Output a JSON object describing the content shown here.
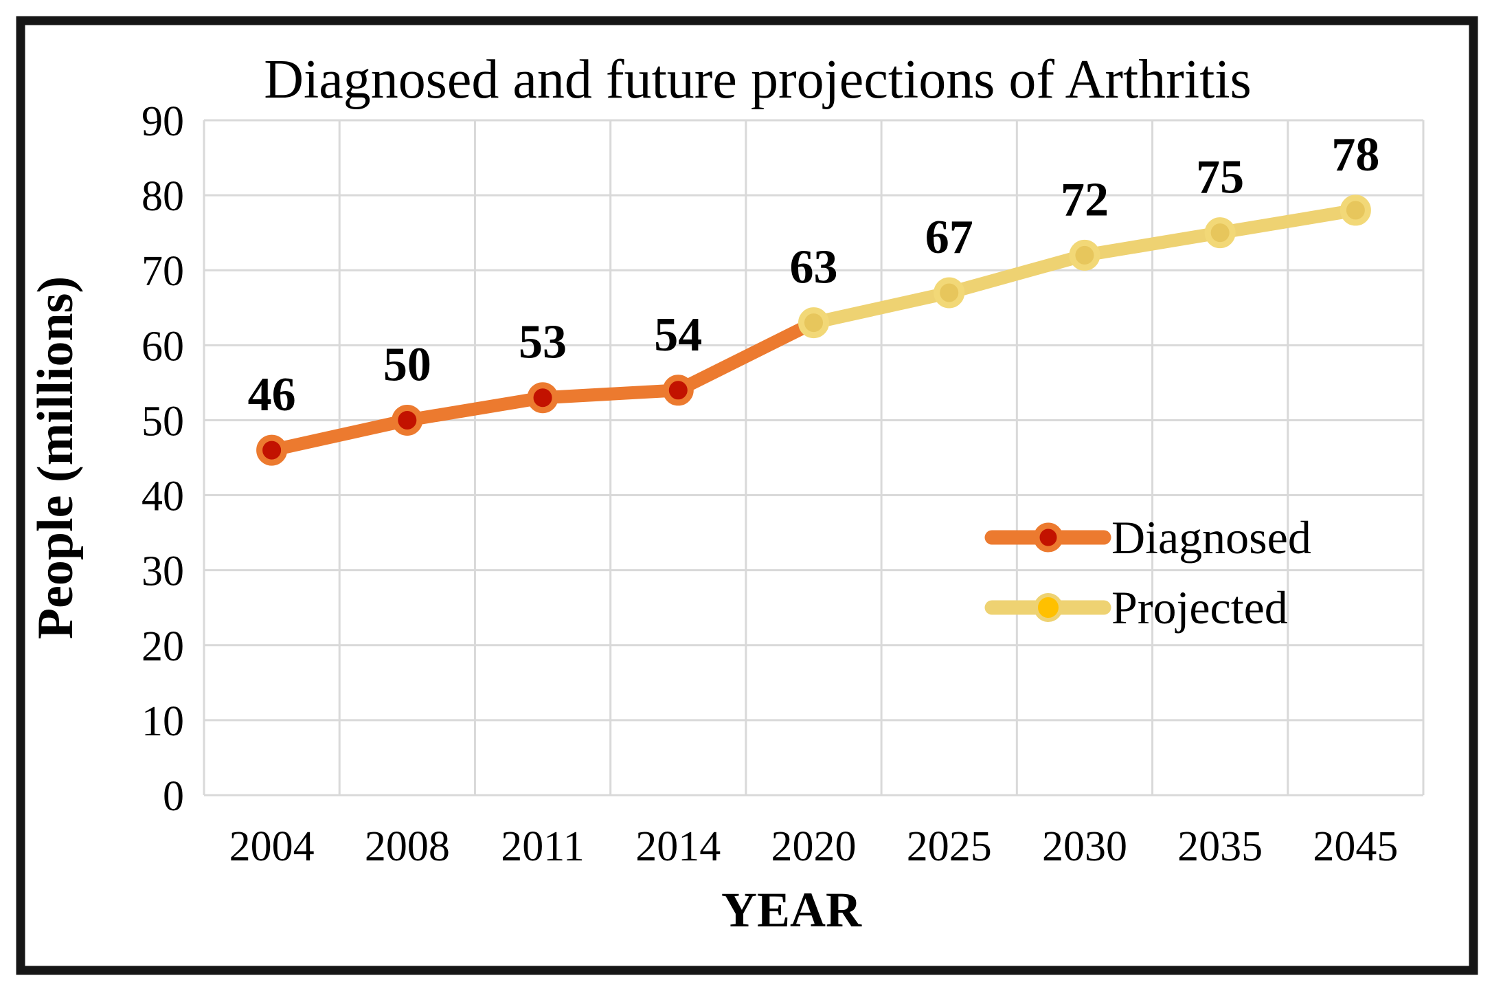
{
  "chart_data": {
    "type": "line",
    "title": "Diagnosed and future projections of Arthritis",
    "xlabel": "YEAR",
    "ylabel": "People  (millions)",
    "categories": [
      "2004",
      "2008",
      "2011",
      "2014",
      "2020",
      "2025",
      "2030",
      "2035",
      "2045"
    ],
    "ylim": [
      0,
      90
    ],
    "ytick_step": 10,
    "ytick_labels": [
      "0",
      "10",
      "20",
      "30",
      "40",
      "50",
      "60",
      "70",
      "80",
      "90"
    ],
    "grid": "on",
    "legend_position": "inside-right",
    "series": [
      {
        "name": "Diagnosed",
        "x_indices": [
          0,
          1,
          2,
          3,
          4
        ],
        "values": [
          46,
          50,
          53,
          54,
          63
        ],
        "labeled_points": [
          46,
          50,
          53,
          54
        ],
        "skip_last_marker": true,
        "line_color": "#EC7A2F",
        "marker_fill": "#C21200",
        "marker_stroke": "#EC7A2F",
        "legend_marker_fill": "#C21200",
        "legend_marker_stroke": "#EC7A2F"
      },
      {
        "name": "Projected",
        "x_indices": [
          4,
          5,
          6,
          7,
          8
        ],
        "values": [
          63,
          67,
          72,
          75,
          78
        ],
        "labeled_points": [
          63,
          67,
          72,
          75,
          78
        ],
        "skip_last_marker": false,
        "line_color": "#EED272",
        "marker_fill": "#E7C65C",
        "marker_stroke": "#F2D877",
        "legend_marker_fill": "#FFC000",
        "legend_marker_stroke": "#EED272"
      }
    ],
    "colors": {
      "gridline": "#D9D9D9",
      "frame_border": "#161616",
      "background": "#FFFFFF",
      "text": "#000000"
    }
  }
}
